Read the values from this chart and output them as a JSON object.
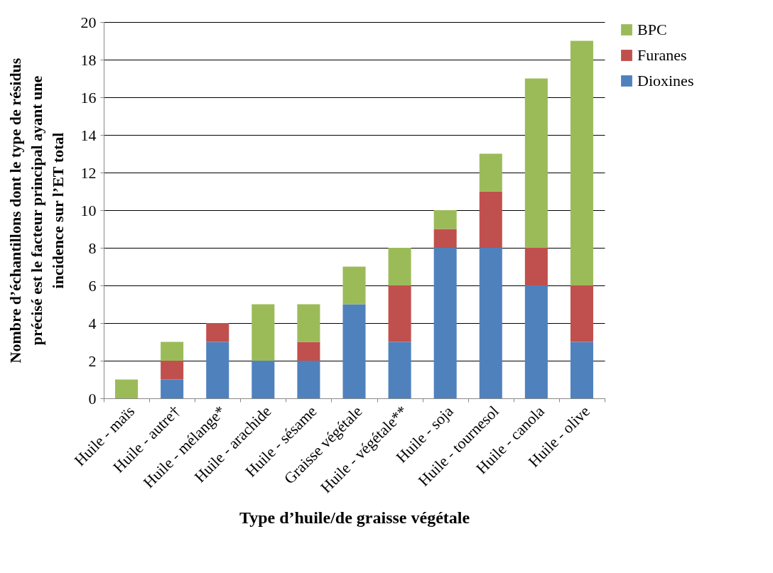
{
  "chart_data": {
    "type": "bar",
    "stacked": true,
    "xlabel": "Type d’huile/de graisse végétale",
    "ylabel": "Nombre d’échantillons dont le type de résidus\nprécisé est le facteur principal ayant une\nincidence sur l’ET total",
    "categories": [
      "Huile - maïs",
      "Huile - autre†",
      "Huile - mélange*",
      "Huile - arachide",
      "Huile - sésame",
      "Graisse végétale",
      "Huile - végétale**",
      "Huile - soja",
      "Huile - tournesol",
      "Huile - canola",
      "Huile - olive"
    ],
    "series": [
      {
        "name": "Dioxines",
        "color": "#4f81bd",
        "values": [
          0,
          1,
          3,
          2,
          2,
          5,
          3,
          8,
          8,
          6,
          3
        ]
      },
      {
        "name": "Furanes",
        "color": "#c0504d",
        "values": [
          0,
          1,
          1,
          0,
          1,
          0,
          3,
          1,
          3,
          2,
          3
        ]
      },
      {
        "name": "BPC",
        "color": "#9bbb59",
        "values": [
          1,
          1,
          0,
          3,
          2,
          2,
          2,
          1,
          2,
          9,
          13
        ]
      }
    ],
    "ylim": [
      0,
      20
    ],
    "yticks": [
      0,
      2,
      4,
      6,
      8,
      10,
      12,
      14,
      16,
      18,
      20
    ],
    "grid": "y",
    "legend": "right"
  }
}
